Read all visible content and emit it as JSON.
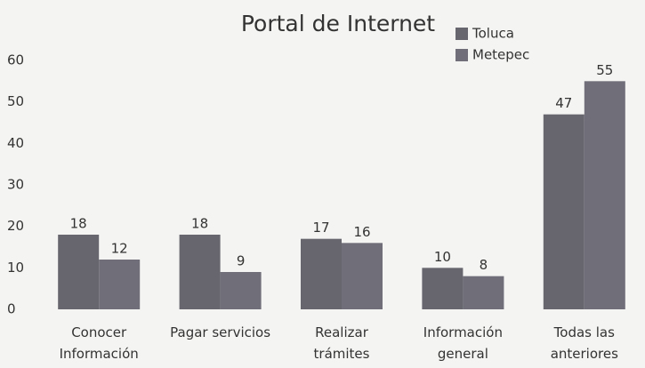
{
  "chart_data": {
    "type": "bar",
    "title": "Portal de Internet",
    "categories": [
      "Conocer\nInformación",
      "Pagar servicios",
      "Realizar\ntrámites",
      "Información\ngeneral",
      "Todas las\nanteriores"
    ],
    "series": [
      {
        "name": "Toluca",
        "color": "#67666f",
        "values": [
          18,
          18,
          17,
          10,
          47
        ]
      },
      {
        "name": "Metepec",
        "color": "#6f6e79",
        "values": [
          12,
          9,
          16,
          8,
          55
        ]
      }
    ],
    "ylim": [
      0,
      60
    ],
    "yticks": [
      0,
      10,
      20,
      30,
      40,
      50,
      60
    ],
    "grid": false,
    "legend": "top-right"
  }
}
